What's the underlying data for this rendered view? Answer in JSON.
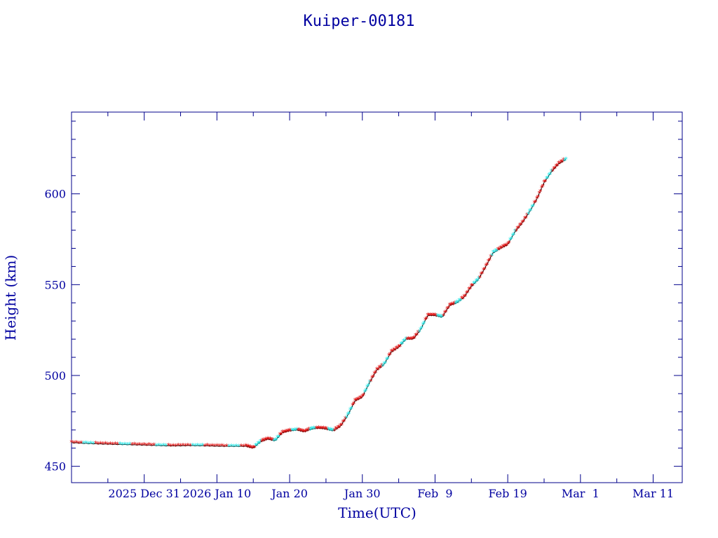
{
  "chart_data": {
    "type": "line",
    "title": "Kuiper-00181",
    "xlabel": "Time(UTC)",
    "ylabel": "Height (km)",
    "x_tick_labels": [
      "2025 Dec 31",
      "2026 Jan 10",
      "Jan 20",
      "Jan 30",
      "Feb  9",
      "Feb 19",
      "Mar  1",
      "Mar 11"
    ],
    "y_tick_labels": [
      "450",
      "500",
      "550",
      "600"
    ],
    "x_range": [
      "2025-12-21",
      "2026-03-15"
    ],
    "ylim": [
      441,
      645
    ],
    "grid": false,
    "colors": {
      "axis": "#00008b",
      "text": "#0000a0",
      "line": "#000000",
      "marker_red": "#dd0000",
      "marker_cyan": "#22e5e5"
    },
    "series": [
      {
        "points": [
          [
            "2025-12-21",
            463
          ],
          [
            "2025-12-23",
            462.6
          ],
          [
            "2025-12-25",
            462.3
          ],
          [
            "2025-12-27",
            462.1
          ],
          [
            "2025-12-29",
            461.9
          ],
          [
            "2025-12-31",
            461.7
          ],
          [
            "2026-01-02",
            461.4
          ],
          [
            "2026-01-04",
            461.2
          ],
          [
            "2026-01-06",
            461.4
          ],
          [
            "2026-01-08",
            461.3
          ],
          [
            "2026-01-10",
            461.1
          ],
          [
            "2026-01-12",
            461.0
          ],
          [
            "2026-01-14",
            461.0
          ],
          [
            "2026-01-15",
            460.0
          ],
          [
            "2026-01-16",
            463.5
          ],
          [
            "2026-01-17",
            465.0
          ],
          [
            "2026-01-18",
            464.0
          ],
          [
            "2026-01-19",
            468.5
          ],
          [
            "2026-01-20",
            469.5
          ],
          [
            "2026-01-21",
            470.0
          ],
          [
            "2026-01-22",
            469.0
          ],
          [
            "2026-01-23",
            470.5
          ],
          [
            "2026-01-24",
            471.0
          ],
          [
            "2026-01-25",
            470.5
          ],
          [
            "2026-01-26",
            469.5
          ],
          [
            "2026-01-27",
            472.0
          ],
          [
            "2026-01-28",
            478.0
          ],
          [
            "2026-01-29",
            486.0
          ],
          [
            "2026-01-30",
            488.0
          ],
          [
            "2026-01-31",
            496.0
          ],
          [
            "2026-02-01",
            503.0
          ],
          [
            "2026-02-02",
            506.0
          ],
          [
            "2026-02-03",
            513.0
          ],
          [
            "2026-02-04",
            515.5
          ],
          [
            "2026-02-05",
            520.0
          ],
          [
            "2026-02-06",
            520.0
          ],
          [
            "2026-02-07",
            525.0
          ],
          [
            "2026-02-08",
            533.0
          ],
          [
            "2026-02-09",
            533.0
          ],
          [
            "2026-02-10",
            532.0
          ],
          [
            "2026-02-11",
            538.5
          ],
          [
            "2026-02-12",
            540.0
          ],
          [
            "2026-02-13",
            543.0
          ],
          [
            "2026-02-14",
            549.0
          ],
          [
            "2026-02-15",
            553.0
          ],
          [
            "2026-02-16",
            560.0
          ],
          [
            "2026-02-17",
            567.5
          ],
          [
            "2026-02-18",
            570.0
          ],
          [
            "2026-02-19",
            572.0
          ],
          [
            "2026-02-20",
            579.0
          ],
          [
            "2026-02-21",
            584.0
          ],
          [
            "2026-02-22",
            590.0
          ],
          [
            "2026-02-23",
            597.0
          ],
          [
            "2026-02-24",
            606.0
          ],
          [
            "2026-02-25",
            612.0
          ],
          [
            "2026-02-26",
            616.5
          ],
          [
            "2026-02-27",
            619.0
          ]
        ]
      }
    ]
  }
}
